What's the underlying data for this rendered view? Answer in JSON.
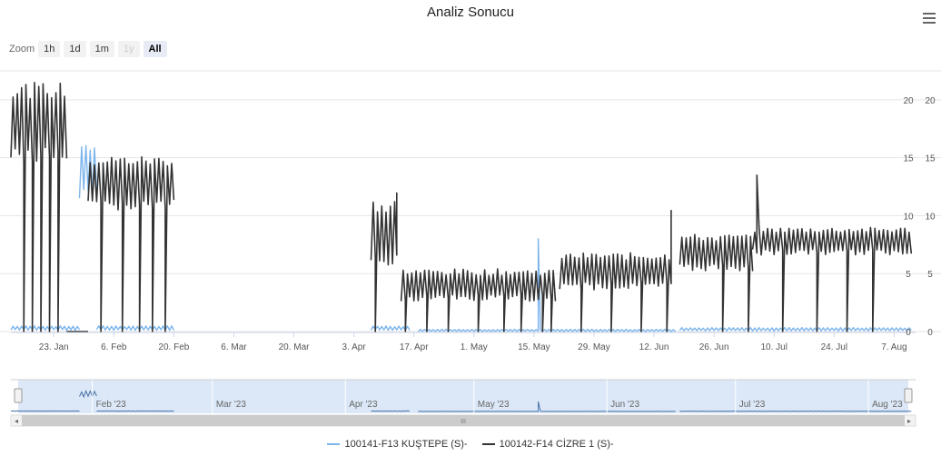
{
  "title": "Analiz Sonucu",
  "zoom": {
    "label": "Zoom",
    "buttons": [
      {
        "label": "1h",
        "state": "normal"
      },
      {
        "label": "1d",
        "state": "normal"
      },
      {
        "label": "1m",
        "state": "normal"
      },
      {
        "label": "1y",
        "state": "disabled"
      },
      {
        "label": "All",
        "state": "active"
      }
    ]
  },
  "navigator": {
    "labels": [
      "Feb '23",
      "Mar '23",
      "Apr '23",
      "May '23",
      "Jun '23",
      "Jul '23",
      "Aug '23"
    ],
    "scrollbar_grip": "III"
  },
  "colors": {
    "series1": "#7cb5ec",
    "series2": "#333333",
    "grid": "#e6e6e6",
    "navigator_mask": "#dce8f7"
  },
  "chart_data": {
    "type": "line",
    "title": "Analiz Sonucu",
    "x_range": [
      "2023-01-13",
      "2023-08-12"
    ],
    "x_ticks": [
      "23. Jan",
      "6. Feb",
      "20. Feb",
      "6. Mar",
      "20. Mar",
      "3. Apr",
      "17. Apr",
      "1. May",
      "15. May",
      "29. May",
      "12. Jun",
      "26. Jun",
      "10. Jul",
      "24. Jul",
      "7. Aug"
    ],
    "y_axes": [
      {
        "ticks": [
          "20",
          "15",
          "10",
          "5",
          "0"
        ],
        "ylim": [
          0,
          22.5
        ]
      },
      {
        "ticks": [
          "20",
          "15",
          "10",
          "5",
          "0"
        ],
        "ylim": [
          0,
          22.5
        ]
      }
    ],
    "grid": true,
    "legend_position": "bottom-center",
    "series": [
      {
        "name": "100141-F13 KUŞTEPE (S)-",
        "color": "#7cb5ec",
        "segments": [
          {
            "start": "2023-01-13",
            "end": "2023-01-29",
            "base": 0.3,
            "amp": 0.2
          },
          {
            "start": "2023-01-29",
            "end": "2023-02-02",
            "base": 14.0,
            "amp": 2.5
          },
          {
            "start": "2023-02-02",
            "end": "2023-02-20",
            "base": 0.3,
            "amp": 0.2
          },
          {
            "start": "2023-04-07",
            "end": "2023-04-16",
            "base": 0.3,
            "amp": 0.2
          },
          {
            "start": "2023-04-18",
            "end": "2023-06-17",
            "base": 0.1,
            "amp": 0.1
          },
          {
            "start": "2023-06-18",
            "end": "2023-08-11",
            "base": 0.2,
            "amp": 0.15
          }
        ],
        "spikes": [
          {
            "x": "2023-05-16",
            "y": 8.0
          }
        ]
      },
      {
        "name": "100142-F14 CİZRE 1 (S)-",
        "color": "#333333",
        "segments": [
          {
            "start": "2023-01-13",
            "end": "2023-01-26",
            "base": 18.0,
            "amp": 3.5
          },
          {
            "start": "2023-01-26",
            "end": "2023-01-31",
            "base": 0.0,
            "amp": 0.0
          },
          {
            "start": "2023-01-31",
            "end": "2023-02-20",
            "base": 12.8,
            "amp": 2.4
          },
          {
            "start": "2023-04-07",
            "end": "2023-04-13",
            "base": 8.5,
            "amp": 3.0
          },
          {
            "start": "2023-04-14",
            "end": "2023-05-20",
            "base": 4.0,
            "amp": 1.4
          },
          {
            "start": "2023-05-21",
            "end": "2023-06-16",
            "base": 5.2,
            "amp": 1.6
          },
          {
            "start": "2023-06-18",
            "end": "2023-07-05",
            "base": 6.8,
            "amp": 1.6
          },
          {
            "start": "2023-07-05",
            "end": "2023-08-11",
            "base": 7.8,
            "amp": 1.2
          }
        ],
        "drops": [
          "2023-01-16",
          "2023-01-18",
          "2023-01-20",
          "2023-01-22",
          "2023-01-24",
          "2023-02-03",
          "2023-02-08",
          "2023-02-12",
          "2023-02-15",
          "2023-02-18",
          "2023-04-08",
          "2023-04-15",
          "2023-04-20",
          "2023-04-25",
          "2023-05-02",
          "2023-05-08",
          "2023-05-12",
          "2023-05-17",
          "2023-05-19",
          "2023-05-26",
          "2023-06-02",
          "2023-06-09",
          "2023-06-15",
          "2023-06-28",
          "2023-07-04",
          "2023-07-12",
          "2023-07-20",
          "2023-07-27",
          "2023-08-02"
        ],
        "spikes": [
          {
            "x": "2023-06-16",
            "y": 10.5
          },
          {
            "x": "2023-07-06",
            "y": 13.5
          },
          {
            "x": "2023-04-13",
            "y": 12.0
          }
        ]
      }
    ]
  }
}
